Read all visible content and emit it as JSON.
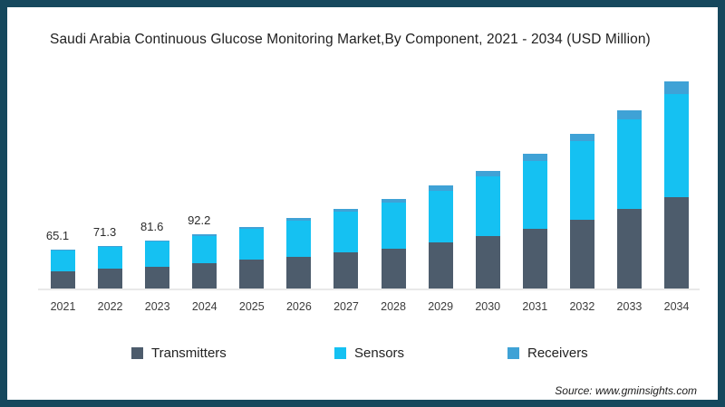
{
  "frame": {
    "border_color": "#16485d",
    "background": "#ffffff"
  },
  "chart_data": {
    "type": "bar",
    "stacked": true,
    "title": "Saudi Arabia Continuous Glucose Monitoring Market,By Component, 2021 - 2034 (USD Million)",
    "categories": [
      "2021",
      "2022",
      "2023",
      "2024",
      "2025",
      "2026",
      "2027",
      "2028",
      "2029",
      "2030",
      "2031",
      "2032",
      "2033",
      "2034"
    ],
    "series": [
      {
        "name": "Transmitters",
        "color": "#4d5c6c",
        "values": [
          29.5,
          33.2,
          37.2,
          42.4,
          48.5,
          53.6,
          61.2,
          67.8,
          78.0,
          89.2,
          101.0,
          116.3,
          134.2,
          154.5
        ]
      },
      {
        "name": "Sensors",
        "color": "#15c1f2",
        "values": [
          34.1,
          36.6,
          42.1,
          46.7,
          52.9,
          61.5,
          69.3,
          78.0,
          87.7,
          100.1,
          114.3,
          132.7,
          151.9,
          174.9
        ]
      },
      {
        "name": "Receivers",
        "color": "#3fa2d6",
        "values": [
          1.5,
          1.5,
          2.3,
          3.1,
          3.1,
          3.8,
          4.6,
          6.1,
          9.2,
          10.1,
          12.2,
          12.2,
          15.3,
          21.4
        ]
      }
    ],
    "totals": [
      65.1,
      71.3,
      81.6,
      92.2,
      104.5,
      118.9,
      135.1,
      151.9,
      174.9,
      199.4,
      227.5,
      261.2,
      301.4,
      350.8
    ],
    "value_labels": [
      "65.1",
      "71.3",
      "81.6",
      "92.2",
      "",
      "",
      "",
      "",
      "",
      "",
      "",
      "",
      "",
      ""
    ],
    "xlabel": "",
    "ylabel": "",
    "ylim": [
      0,
      400
    ],
    "grid": false,
    "legend_position": "bottom",
    "axis_line_color": "#e9e9e9"
  },
  "source": "Source: www.gminsights.com"
}
